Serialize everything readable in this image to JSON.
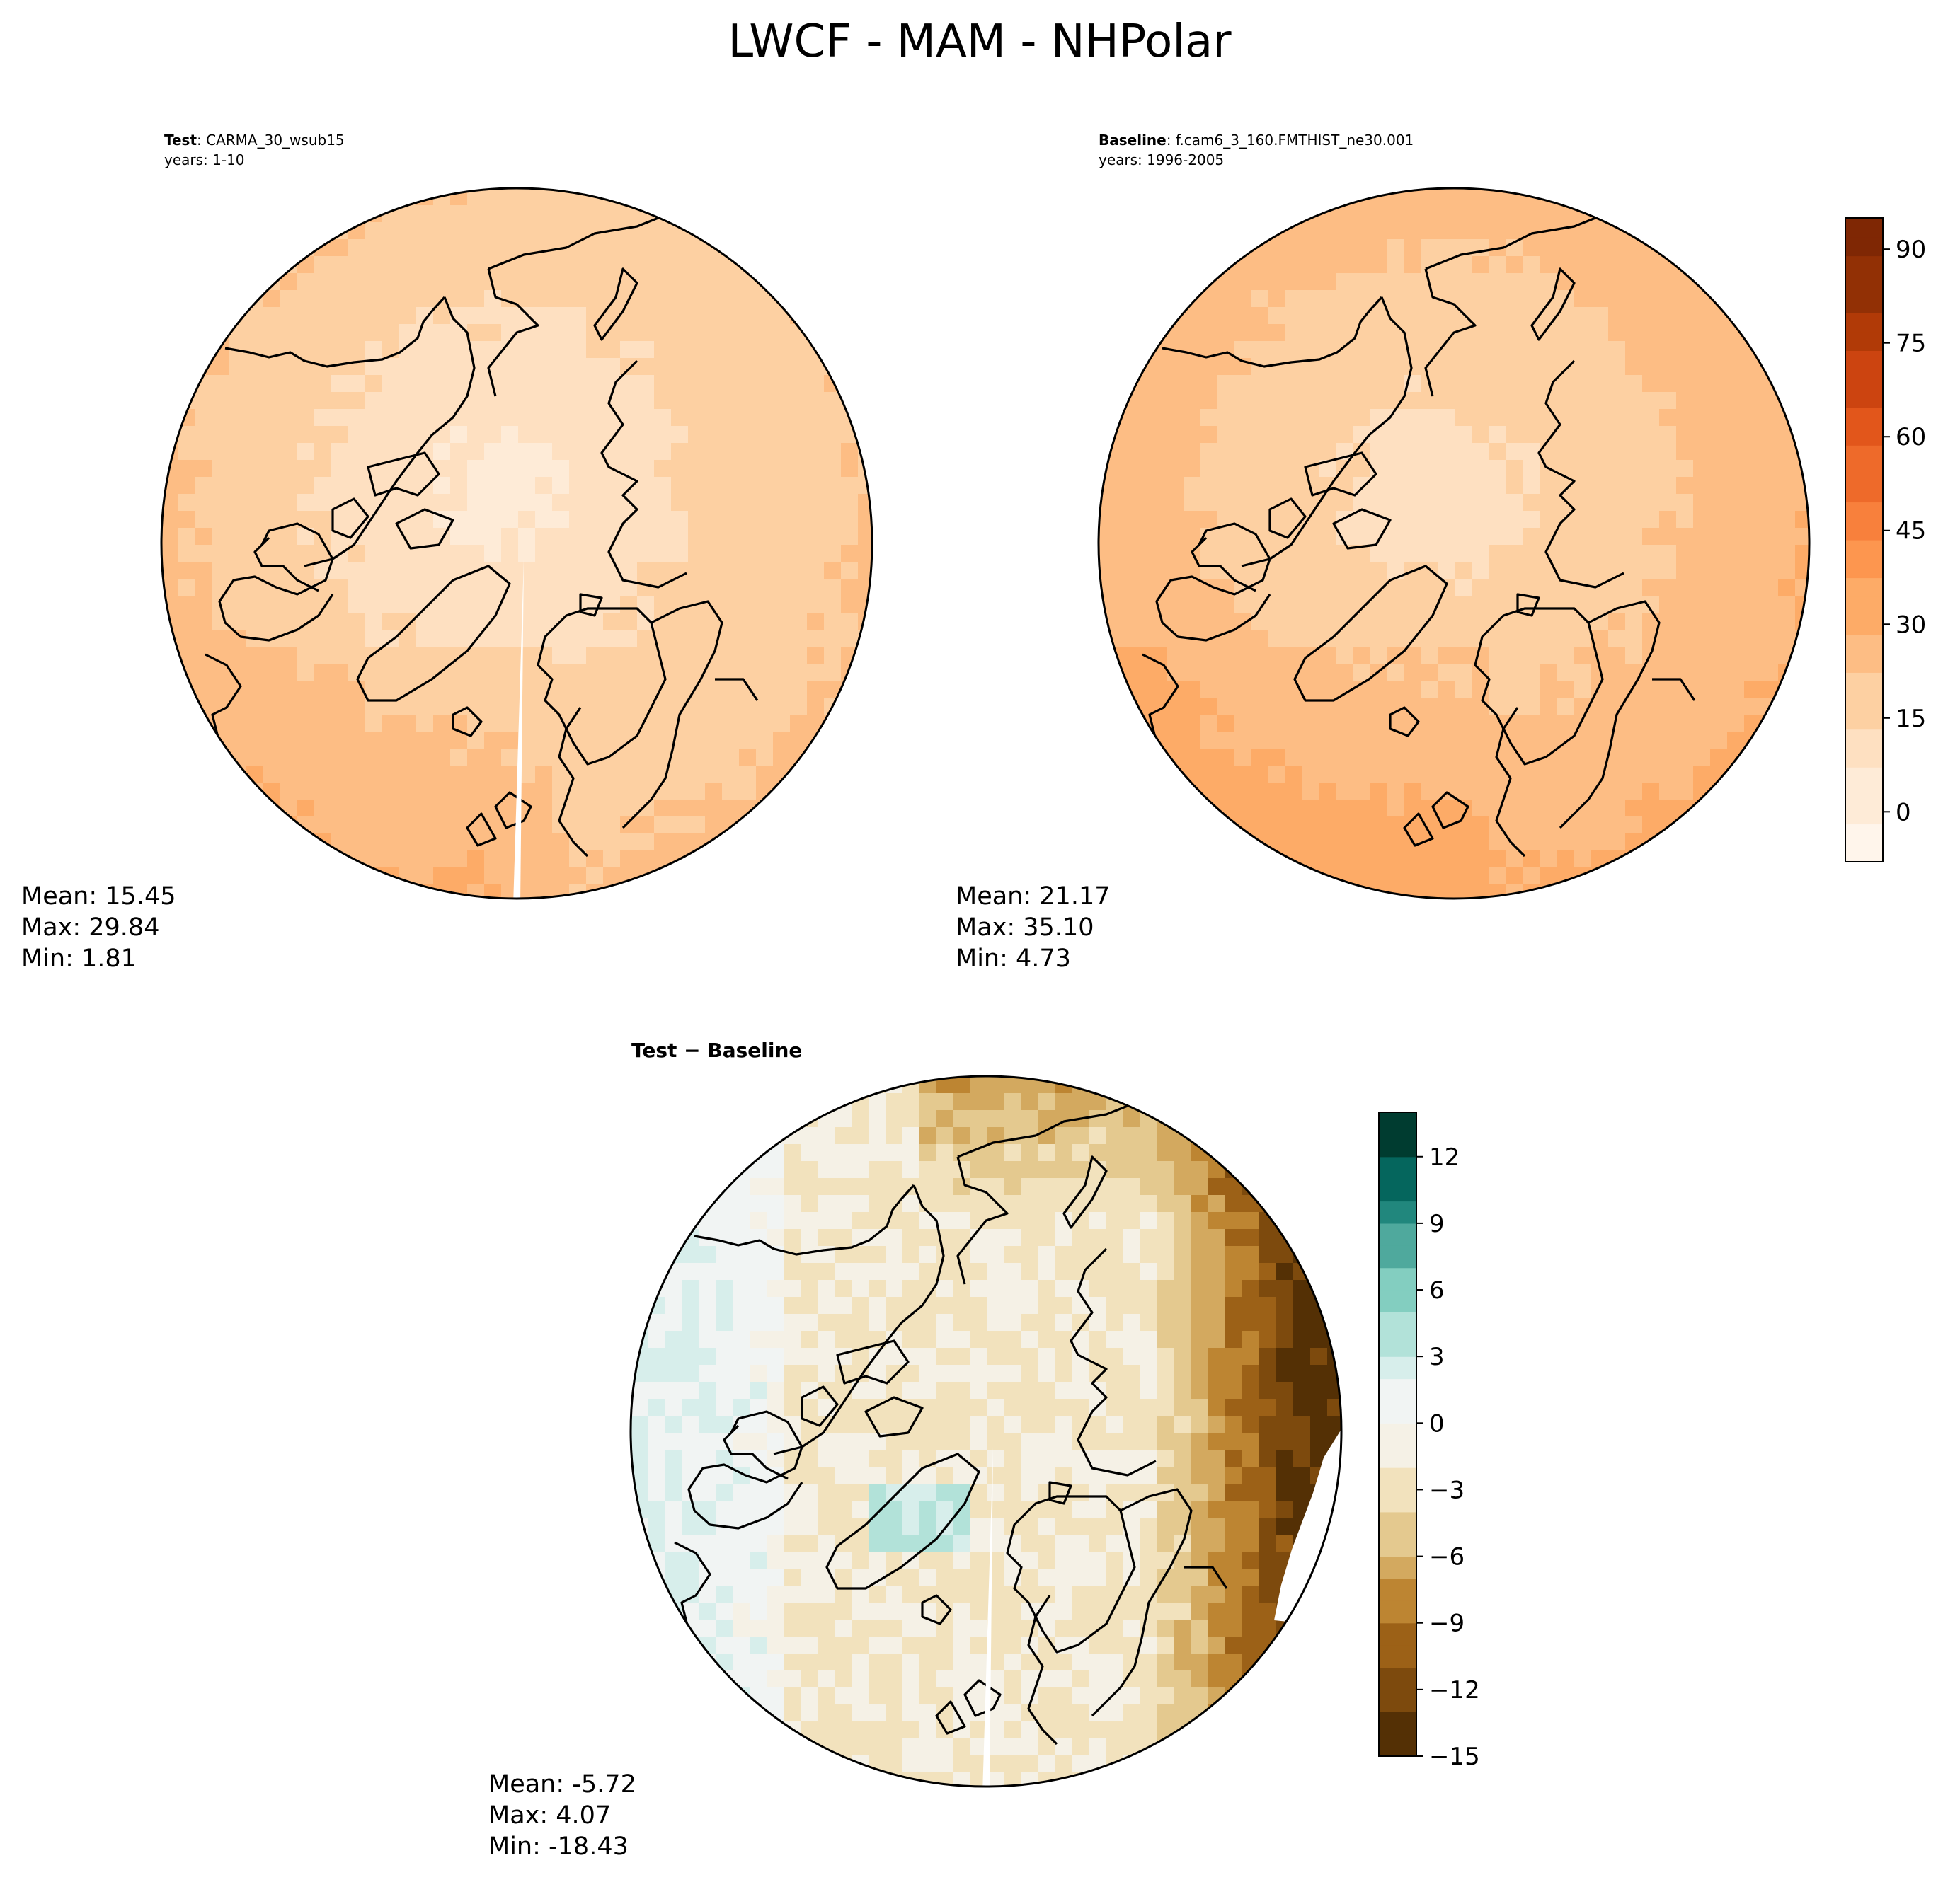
{
  "figure": {
    "title": "LWCF - MAM - NHPolar"
  },
  "colors": {
    "orange_ramp": [
      "#fff5eb",
      "#feebd7",
      "#fee0c1",
      "#fdd0a2",
      "#fdbd84",
      "#fdab67",
      "#fd964f",
      "#f8803c",
      "#ee6a2a",
      "#e2561b",
      "#cc4410",
      "#b13a07",
      "#923005",
      "#7f2704"
    ],
    "brbg_neg": [
      "#543005",
      "#7d4a0d",
      "#9c6117",
      "#bd8532",
      "#d3a95f",
      "#e4c98f",
      "#f2e2bd",
      "#f5f1e6"
    ],
    "brbg_pos": [
      "#f1f4f3",
      "#d7eeeb",
      "#b2e2d9",
      "#83cec0",
      "#4fa99d",
      "#21877d",
      "#05665d",
      "#003c30"
    ]
  },
  "chart_data": [
    {
      "type": "heatmap",
      "name": "test",
      "label_bold": "Test",
      "case": ": CARMA_30_wsub15",
      "years": "years: 1-10",
      "stats": {
        "mean": "Mean: 15.45",
        "max": "Max: 29.84",
        "min": "Min:  1.81"
      },
      "field": {
        "pole": 4,
        "mid": 16,
        "rim_west": 26,
        "rim_east": 22
      }
    },
    {
      "type": "heatmap",
      "name": "baseline",
      "label_bold": "Baseline",
      "case": ": f.cam6_3_160.FMTHIST_ne30.001",
      "years": "years: 1996-2005",
      "stats": {
        "mean": "Mean: 21.17",
        "max": "Max: 35.10",
        "min": "Min:  4.73"
      },
      "field": {
        "pole": 10,
        "mid": 20,
        "rim_west": 30,
        "rim_east": 29
      },
      "colorbar": {
        "ticks": [
          "90",
          "75",
          "60",
          "45",
          "30",
          "15",
          "0"
        ],
        "tick_values": [
          90,
          75,
          60,
          45,
          30,
          15,
          0
        ],
        "range": [
          -8,
          95
        ]
      }
    },
    {
      "type": "heatmap",
      "name": "difference",
      "label": "Test − Baseline",
      "stats": {
        "mean": "Mean: -5.72",
        "max": "Max:  4.07",
        "min": "Min: -18.43"
      },
      "field": {
        "pole": -2,
        "west": 2,
        "east": -14,
        "north": -5
      },
      "colorbar": {
        "ticks": [
          "12",
          "9",
          "6",
          "3",
          "0",
          "−3",
          "−6",
          "−9",
          "−12",
          "−15"
        ],
        "tick_values": [
          12,
          9,
          6,
          3,
          0,
          -3,
          -6,
          -9,
          -12,
          -15
        ],
        "range": [
          -15,
          14
        ]
      }
    }
  ]
}
